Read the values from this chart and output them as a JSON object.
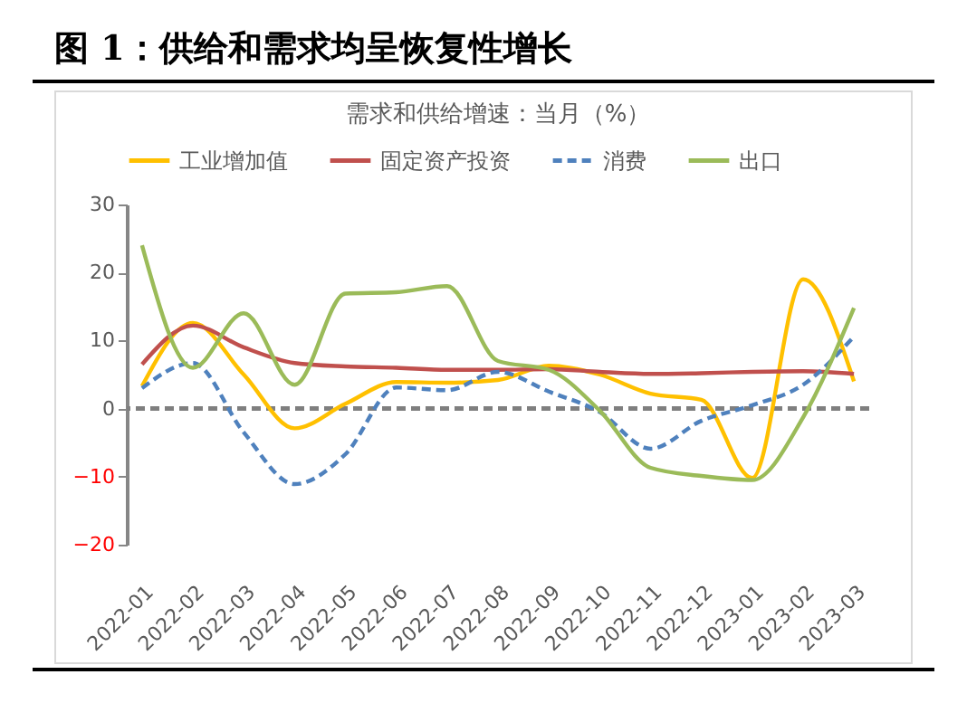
{
  "chart_data": {
    "type": "line",
    "title": "图 1：供给和需求均呈恢复性增长",
    "subtitle": "需求和供给增速：当月（%）",
    "categories": [
      "2022-01",
      "2022-02",
      "2022-03",
      "2022-04",
      "2022-05",
      "2022-06",
      "2022-07",
      "2022-08",
      "2022-09",
      "2022-10",
      "2022-11",
      "2022-12",
      "2023-01",
      "2023-02",
      "2023-03"
    ],
    "series": [
      {
        "name": "工业增加值",
        "color": "#ffc000",
        "line_style": "solid",
        "values": [
          3.3,
          12.6,
          5,
          -2.9,
          0.7,
          3.9,
          3.8,
          4.2,
          6.3,
          5,
          2.2,
          1.3,
          -10.2,
          19,
          4
        ]
      },
      {
        "name": "固定资产投资",
        "color": "#c0504d",
        "line_style": "solid",
        "values": [
          6.5,
          12.2,
          9,
          6.7,
          6.2,
          6,
          5.7,
          5.7,
          5.8,
          5.4,
          5.1,
          5.2,
          5.4,
          5.5,
          5.1
        ]
      },
      {
        "name": "消费",
        "color": "#4f81bd",
        "line_style": "dashed",
        "values": [
          3,
          6.7,
          -3.5,
          -11.1,
          -6.7,
          3.1,
          2.7,
          5.4,
          2.5,
          -0.5,
          -5.9,
          -1.8,
          0.5,
          3.5,
          10.6
        ]
      },
      {
        "name": "出口",
        "color": "#9bbb59",
        "line_style": "solid",
        "values": [
          24,
          6,
          14,
          3.5,
          16.9,
          17.1,
          18,
          7,
          5.7,
          -0.3,
          -8.7,
          -9.9,
          -10.5,
          -1.3,
          14.8
        ]
      }
    ],
    "ylim": [
      -20,
      30
    ],
    "yticks": [
      -20,
      -10,
      0,
      10,
      20,
      30
    ],
    "grid": false,
    "legend": "top",
    "ref_lines": [
      {
        "axis": "y",
        "value": 0,
        "color": "#7f7f7f",
        "line_style": "dashed"
      }
    ]
  }
}
